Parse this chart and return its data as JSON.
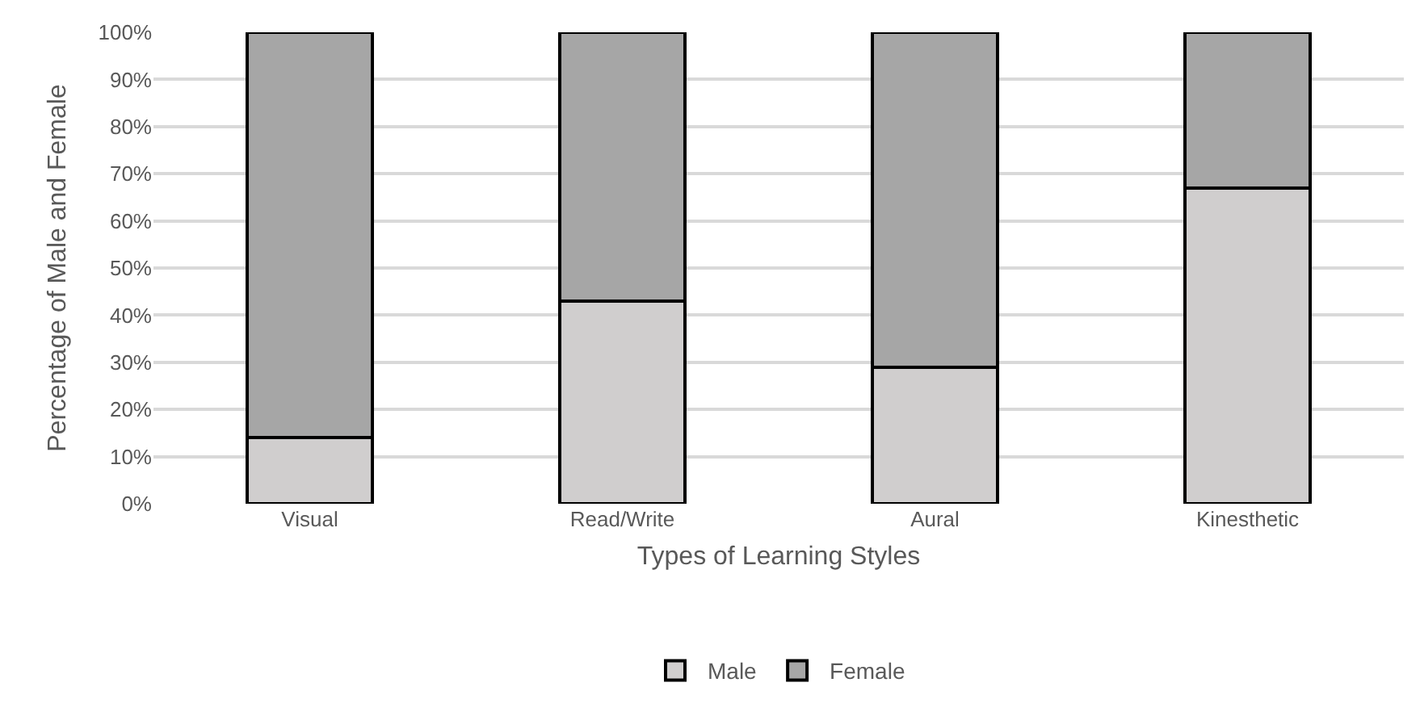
{
  "chart_data": {
    "type": "bar",
    "stacked": true,
    "xlabel": "Types of Learning Styles",
    "ylabel": "Percentage of Male and Female",
    "categories": [
      "Visual",
      "Read/Write",
      "Aural",
      "Kinesthetic"
    ],
    "series": [
      {
        "name": "Male",
        "color": "#d0cece",
        "values": [
          14,
          43,
          29,
          67
        ]
      },
      {
        "name": "Female",
        "color": "#a6a6a6",
        "values": [
          86,
          57,
          71,
          33
        ]
      }
    ],
    "ylim": [
      0,
      100
    ],
    "yticks": [
      {
        "value": 0,
        "label": "0%"
      },
      {
        "value": 10,
        "label": "10%"
      },
      {
        "value": 20,
        "label": "20%"
      },
      {
        "value": 30,
        "label": "30%"
      },
      {
        "value": 40,
        "label": "40%"
      },
      {
        "value": 50,
        "label": "50%"
      },
      {
        "value": 60,
        "label": "60%"
      },
      {
        "value": 70,
        "label": "70%"
      },
      {
        "value": 80,
        "label": "80%"
      },
      {
        "value": 90,
        "label": "90%"
      },
      {
        "value": 100,
        "label": "100%"
      }
    ],
    "grid": "y",
    "legend": "bottom"
  }
}
